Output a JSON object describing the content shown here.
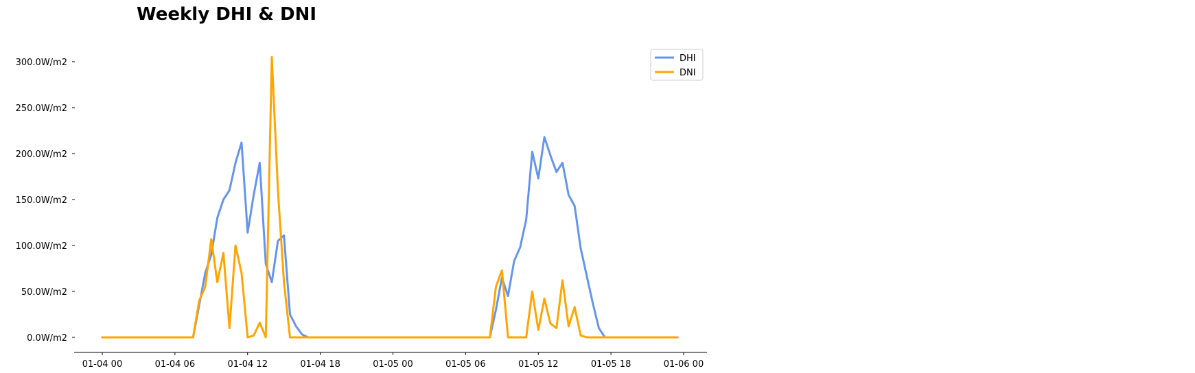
{
  "chart_data": {
    "type": "line",
    "title": "Weekly DHI & DNI",
    "xlabel": "",
    "ylabel": "",
    "y_unit_suffix": "W/m2",
    "ylim": [
      0,
      300
    ],
    "y_ticks": [
      0,
      50,
      100,
      150,
      200,
      250,
      300
    ],
    "y_tick_labels": [
      "0.0W/m2",
      "50.0W/m2",
      "100.0W/m2",
      "150.0W/m2",
      "200.0W/m2",
      "250.0W/m2",
      "300.0W/m2"
    ],
    "x_ticks": [
      "01-04 00",
      "01-04 06",
      "01-04 12",
      "01-04 18",
      "01-05 00",
      "01-05 06",
      "01-05 12",
      "01-05 18",
      "01-06 00"
    ],
    "x_unit": "hours since 01-04 00",
    "grid": false,
    "legend_position": "top-right",
    "x": [
      0,
      0.5,
      1,
      1.5,
      2,
      2.5,
      3,
      3.5,
      4,
      4.5,
      5,
      5.5,
      6,
      6.5,
      7,
      7.5,
      8,
      8.5,
      9,
      9.5,
      10,
      10.5,
      11,
      11.5,
      12,
      12.5,
      13,
      13.5,
      14,
      14.5,
      15,
      15.5,
      16,
      16.5,
      17,
      17.5,
      18,
      18.5,
      19,
      19.5,
      20,
      20.5,
      21,
      21.5,
      22,
      22.5,
      23,
      23.5,
      24,
      24.5,
      25,
      25.5,
      26,
      26.5,
      27,
      27.5,
      28,
      28.5,
      29,
      29.5,
      30,
      30.5,
      31,
      31.5,
      32,
      32.5,
      33,
      33.5,
      34,
      34.5,
      35,
      35.5,
      36,
      36.5,
      37,
      37.5,
      38,
      38.5,
      39,
      39.5,
      40,
      40.5,
      41,
      41.5,
      42,
      42.5,
      43,
      43.5,
      44,
      44.5,
      45,
      45.5,
      46,
      46.5,
      47,
      47.5
    ],
    "series": [
      {
        "name": "DHI",
        "color": "#6495ED",
        "values": [
          0,
          0,
          0,
          0,
          0,
          0,
          0,
          0,
          0,
          0,
          0,
          0,
          0,
          0,
          0,
          0,
          35,
          70,
          90,
          130,
          150,
          160,
          190,
          212,
          114,
          155,
          190,
          80,
          60,
          105,
          111,
          25,
          12,
          3,
          0,
          0,
          0,
          0,
          0,
          0,
          0,
          0,
          0,
          0,
          0,
          0,
          0,
          0,
          0,
          0,
          0,
          0,
          0,
          0,
          0,
          0,
          0,
          0,
          0,
          0,
          0,
          0,
          0,
          0,
          0,
          30,
          65,
          45,
          83,
          98,
          128,
          202,
          173,
          218,
          198,
          180,
          190,
          155,
          143,
          97,
          67,
          37,
          10,
          0,
          0,
          0,
          0,
          0,
          0,
          0,
          0,
          0,
          0,
          0,
          0,
          0
        ]
      },
      {
        "name": "DNI",
        "color": "#FFA500",
        "values": [
          0,
          0,
          0,
          0,
          0,
          0,
          0,
          0,
          0,
          0,
          0,
          0,
          0,
          0,
          0,
          0,
          40,
          55,
          107,
          60,
          92,
          10,
          100,
          70,
          0,
          2,
          16,
          0,
          305,
          160,
          60,
          0,
          0,
          0,
          0,
          0,
          0,
          0,
          0,
          0,
          0,
          0,
          0,
          0,
          0,
          0,
          0,
          0,
          0,
          0,
          0,
          0,
          0,
          0,
          0,
          0,
          0,
          0,
          0,
          0,
          0,
          0,
          0,
          0,
          0,
          55,
          73,
          0,
          0,
          0,
          0,
          50,
          8,
          42,
          15,
          10,
          62,
          12,
          33,
          2,
          0,
          0,
          0,
          0,
          0,
          0,
          0,
          0,
          0,
          0,
          0,
          0,
          0,
          0,
          0,
          0
        ]
      }
    ]
  }
}
